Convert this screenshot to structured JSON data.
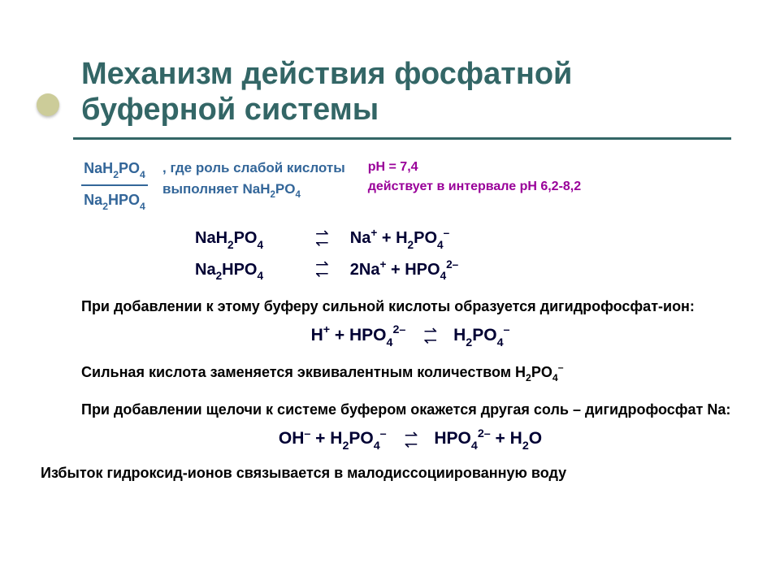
{
  "colors": {
    "title": "#336666",
    "divider": "#336666",
    "blue": "#336699",
    "purple": "#990099",
    "bullet": "#cccc99",
    "text": "#000000"
  },
  "title_line1": "Механизм действия фосфатной",
  "title_line2": "буферной системы",
  "ratio": {
    "top": "NaH<sub>2</sub>PO<sub>4</sub>",
    "bottom": "Na<sub>2</sub>HPO<sub>4</sub>"
  },
  "desc": {
    "line1": ",  где роль слабой кислоты",
    "line2": "выполняет NaH<sub>2</sub>PO<sub>4</sub>"
  },
  "ph": {
    "line1": "pH = 7,4",
    "line2": "действует в интервале рН 6,2-8,2"
  },
  "eq1": {
    "left": "NaH<sub>2</sub>PO<sub>4</sub>",
    "right": "Na<sup>+</sup>  + H<sub>2</sub>PO<sub>4</sub><sup>&#8211;</sup>"
  },
  "eq2": {
    "left": "Na<sub>2</sub>HPO<sub>4</sub>",
    "right": "2Na<sup>+</sup>  + HPO<sub>4</sub><sup>2&#8211;</sup>"
  },
  "para1": "При добавлении к этому буферу сильной кислоты образуется дигидрофосфат-ион:",
  "eq3": {
    "left": "H<sup>+</sup>  +  HPO<sub>4</sub><sup>2&#8211;</sup>",
    "right": "H<sub>2</sub>PO<sub>4</sub><sup>&#8211;</sup>"
  },
  "para2": "Сильная кислота заменяется эквивалентным количеством  H<sub>2</sub>PO<sub>4</sub><sup>&#8211;</sup>",
  "para3": "При добавлении щелочи к системе буфером окажется другая соль – дигидрофосфат Na:",
  "eq4": {
    "left": "OH<sup>&#8211;</sup> + H<sub>2</sub>PO<sub>4</sub><sup>&#8211;</sup>",
    "right": "HPO<sub>4</sub><sup>2&#8211;</sup> + H<sub>2</sub>O"
  },
  "footer": "Избыток гидроксид-ионов связывается в малодиссоциированную воду"
}
